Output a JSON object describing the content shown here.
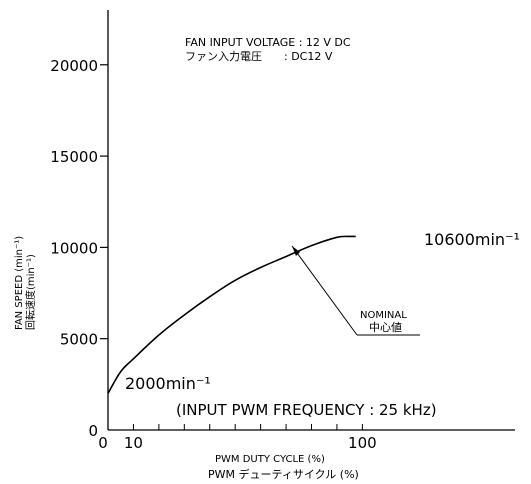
{
  "chart_data": {
    "type": "line",
    "title": "",
    "header_lines": [
      "FAN INPUT VOLTAGE : 12 V DC",
      "ファン入力電圧　　: DC12 V"
    ],
    "xlabel": "PWM DUTY CYCLE (%)",
    "xlabel_jp": "PWM デューティサイクル (%)",
    "ylabel": "FAN SPEED (min⁻¹)",
    "ylabel_jp": "回転速度(min⁻¹)",
    "xlim": [
      0,
      160
    ],
    "ylim": [
      0,
      23000
    ],
    "x_ticks": [
      {
        "value": 0,
        "label": "0"
      },
      {
        "value": 10,
        "label": "10"
      },
      {
        "value": 100,
        "label": "100"
      }
    ],
    "y_ticks": [
      {
        "value": 0,
        "label": "0"
      },
      {
        "value": 5000,
        "label": "5000"
      },
      {
        "value": 10000,
        "label": "10000"
      },
      {
        "value": 15000,
        "label": "15000"
      },
      {
        "value": 20000,
        "label": "20000"
      }
    ],
    "minor_x_ticks": [
      10,
      20,
      30,
      40,
      50,
      60,
      70,
      80,
      90,
      100
    ],
    "grid": false,
    "series": [
      {
        "name": "",
        "x": [
          0,
          5,
          10,
          20,
          30,
          40,
          50,
          60,
          70,
          80,
          90,
          95
        ],
        "y": [
          2000,
          3200,
          3900,
          5200,
          6300,
          7300,
          8200,
          8900,
          9500,
          10100,
          10550,
          10600
        ]
      }
    ],
    "annotations": {
      "start_label": "2000min⁻¹",
      "end_label": "10600min⁻¹",
      "nominal_en": "NOMINAL",
      "nominal_jp": "中心値",
      "frequency_note": "(INPUT PWM FREQUENCY : 25 kHz)"
    }
  }
}
